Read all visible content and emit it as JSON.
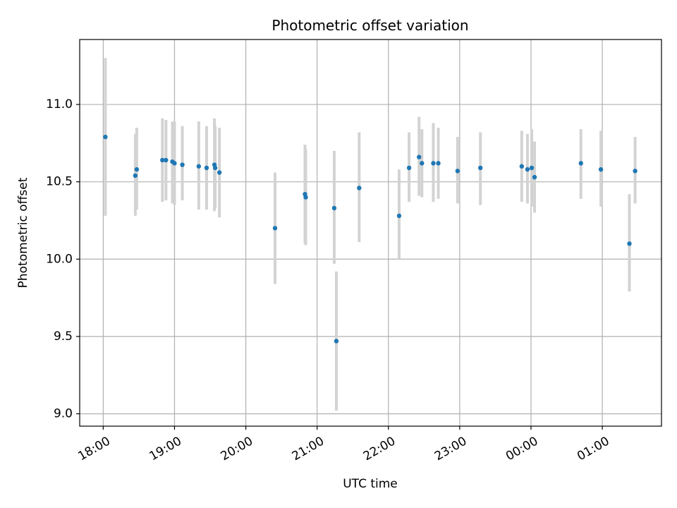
{
  "chart_data": {
    "type": "scatter",
    "title": "Photometric offset variation",
    "xlabel": "UTC time",
    "ylabel": "Photometric offset",
    "x_ticks": [
      "18:00",
      "19:00",
      "20:00",
      "21:00",
      "22:00",
      "23:00",
      "00:00",
      "01:00"
    ],
    "x_tick_hours": [
      0,
      1,
      2,
      3,
      4,
      5,
      6,
      7
    ],
    "x_axis_origin": "18:00",
    "xlim_hours": [
      -0.33,
      7.83
    ],
    "y_ticks": [
      "9.0",
      "9.5",
      "10.0",
      "10.5",
      "11.0"
    ],
    "y_tick_values": [
      9.0,
      9.5,
      10.0,
      10.5,
      11.0
    ],
    "ylim": [
      8.92,
      11.42
    ],
    "grid": true,
    "colors": {
      "marker": "#1f77b4",
      "errorbar": "#d3d3d3",
      "grid": "#b0b0b0"
    },
    "points": [
      {
        "t": 0.03,
        "y": 10.79,
        "lo": 10.28,
        "hi": 11.3
      },
      {
        "t": 0.45,
        "y": 10.54,
        "lo": 10.28,
        "hi": 10.81
      },
      {
        "t": 0.47,
        "y": 10.58,
        "lo": 10.32,
        "hi": 10.85
      },
      {
        "t": 0.83,
        "y": 10.64,
        "lo": 10.37,
        "hi": 10.91
      },
      {
        "t": 0.88,
        "y": 10.64,
        "lo": 10.38,
        "hi": 10.9
      },
      {
        "t": 0.97,
        "y": 10.63,
        "lo": 10.36,
        "hi": 10.89
      },
      {
        "t": 1.0,
        "y": 10.62,
        "lo": 10.35,
        "hi": 10.89
      },
      {
        "t": 1.11,
        "y": 10.61,
        "lo": 10.38,
        "hi": 10.86
      },
      {
        "t": 1.34,
        "y": 10.6,
        "lo": 10.32,
        "hi": 10.89
      },
      {
        "t": 1.45,
        "y": 10.59,
        "lo": 10.32,
        "hi": 10.86
      },
      {
        "t": 1.56,
        "y": 10.61,
        "lo": 10.31,
        "hi": 10.91
      },
      {
        "t": 1.57,
        "y": 10.59,
        "lo": 10.33,
        "hi": 10.86
      },
      {
        "t": 1.63,
        "y": 10.56,
        "lo": 10.27,
        "hi": 10.85
      },
      {
        "t": 2.41,
        "y": 10.2,
        "lo": 9.84,
        "hi": 10.56
      },
      {
        "t": 2.83,
        "y": 10.42,
        "lo": 10.1,
        "hi": 10.74
      },
      {
        "t": 2.84,
        "y": 10.4,
        "lo": 10.09,
        "hi": 10.71
      },
      {
        "t": 3.24,
        "y": 10.33,
        "lo": 9.97,
        "hi": 10.7
      },
      {
        "t": 3.27,
        "y": 9.47,
        "lo": 9.02,
        "hi": 9.92
      },
      {
        "t": 3.59,
        "y": 10.46,
        "lo": 10.11,
        "hi": 10.82
      },
      {
        "t": 4.15,
        "y": 10.28,
        "lo": 10.0,
        "hi": 10.58
      },
      {
        "t": 4.29,
        "y": 10.59,
        "lo": 10.37,
        "hi": 10.82
      },
      {
        "t": 4.43,
        "y": 10.66,
        "lo": 10.41,
        "hi": 10.92
      },
      {
        "t": 4.47,
        "y": 10.62,
        "lo": 10.4,
        "hi": 10.84
      },
      {
        "t": 4.63,
        "y": 10.62,
        "lo": 10.37,
        "hi": 10.88
      },
      {
        "t": 4.7,
        "y": 10.62,
        "lo": 10.39,
        "hi": 10.85
      },
      {
        "t": 4.97,
        "y": 10.57,
        "lo": 10.36,
        "hi": 10.79
      },
      {
        "t": 5.29,
        "y": 10.59,
        "lo": 10.35,
        "hi": 10.82
      },
      {
        "t": 5.87,
        "y": 10.6,
        "lo": 10.37,
        "hi": 10.83
      },
      {
        "t": 5.95,
        "y": 10.58,
        "lo": 10.36,
        "hi": 10.81
      },
      {
        "t": 6.01,
        "y": 10.59,
        "lo": 10.34,
        "hi": 10.84
      },
      {
        "t": 6.05,
        "y": 10.53,
        "lo": 10.3,
        "hi": 10.76
      },
      {
        "t": 6.7,
        "y": 10.62,
        "lo": 10.39,
        "hi": 10.84
      },
      {
        "t": 6.98,
        "y": 10.58,
        "lo": 10.34,
        "hi": 10.83
      },
      {
        "t": 7.38,
        "y": 10.1,
        "lo": 9.79,
        "hi": 10.42
      },
      {
        "t": 7.46,
        "y": 10.57,
        "lo": 10.36,
        "hi": 10.79
      }
    ]
  }
}
